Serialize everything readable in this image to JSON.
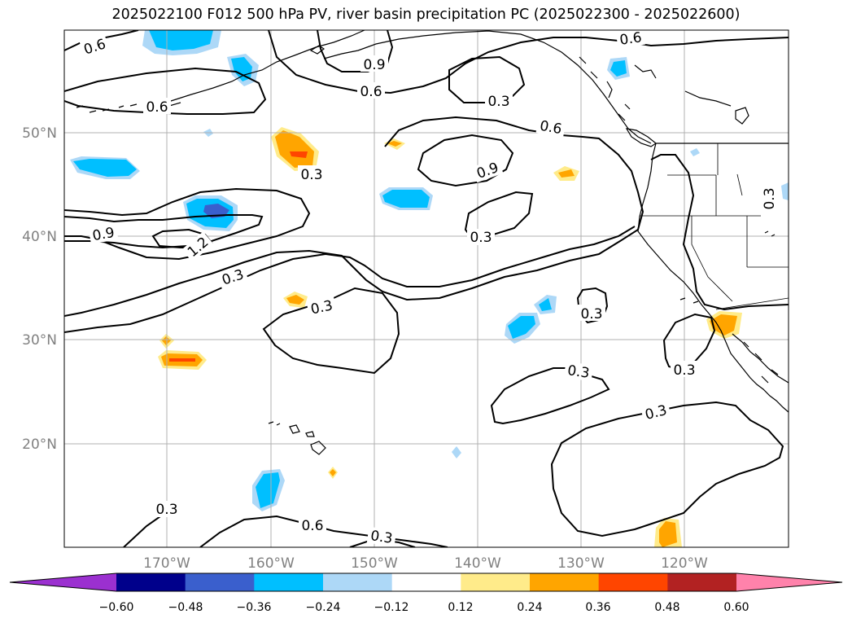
{
  "title": "2025022100 F012 500 hPa PV, river basin precipitation PC (2025022300 - 2025022600)",
  "map": {
    "lat_labels": [
      "50°N",
      "40°N",
      "30°N",
      "20°N"
    ],
    "lon_labels": [
      "170°W",
      "160°W",
      "150°W",
      "140°W",
      "130°W",
      "120°W"
    ],
    "contour_labels": [
      "0.6",
      "0.9",
      "0.6",
      "0.6",
      "0.3",
      "0.6",
      "0.9",
      "0.3",
      "0.6",
      "0.9",
      "1.2",
      "0.3",
      "0.3",
      "0.3",
      "0.3",
      "0.3",
      "0.3",
      "0.3",
      "0.3",
      "0.3",
      "0.6",
      "0.3"
    ]
  },
  "colorbar": {
    "ticks": [
      "−0.60",
      "−0.48",
      "−0.36",
      "−0.24",
      "−0.12",
      "0.12",
      "0.24",
      "0.36",
      "0.48",
      "0.60"
    ],
    "colors": [
      "#9b30d0",
      "#00008b",
      "#3a5fcd",
      "#00bfff",
      "#add8f7",
      "#ffffff",
      "#ffeb8a",
      "#ffa500",
      "#ff4500",
      "#b22222",
      "#ff82ab"
    ]
  },
  "colors": {
    "neg_light": "#add8f7",
    "neg_mid": "#00bfff",
    "neg_dark": "#3a5fcd",
    "pos_light": "#ffeb8a",
    "pos_mid": "#ffa500",
    "pos_dark": "#ff4500"
  }
}
